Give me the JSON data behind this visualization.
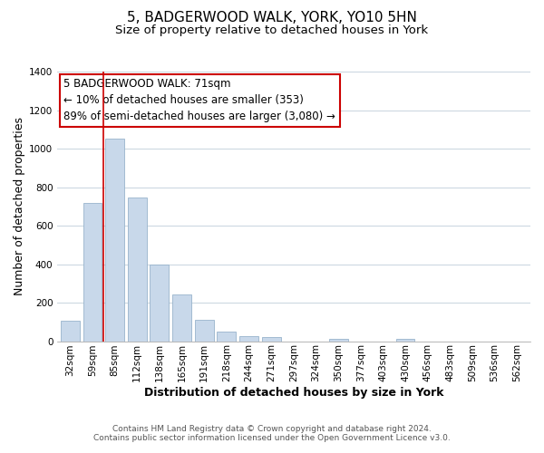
{
  "title": "5, BADGERWOOD WALK, YORK, YO10 5HN",
  "subtitle": "Size of property relative to detached houses in York",
  "xlabel": "Distribution of detached houses by size in York",
  "ylabel": "Number of detached properties",
  "categories": [
    "32sqm",
    "59sqm",
    "85sqm",
    "112sqm",
    "138sqm",
    "165sqm",
    "191sqm",
    "218sqm",
    "244sqm",
    "271sqm",
    "297sqm",
    "324sqm",
    "350sqm",
    "377sqm",
    "403sqm",
    "430sqm",
    "456sqm",
    "483sqm",
    "509sqm",
    "536sqm",
    "562sqm"
  ],
  "values": [
    107,
    720,
    1050,
    748,
    400,
    243,
    110,
    50,
    28,
    22,
    0,
    0,
    10,
    0,
    0,
    10,
    0,
    0,
    0,
    0,
    0
  ],
  "bar_color": "#c8d8ea",
  "bar_edge_color": "#98b4cc",
  "vline_x": 1.5,
  "vline_color": "#cc0000",
  "annotation_line1": "5 BADGERWOOD WALK: 71sqm",
  "annotation_line2": "← 10% of detached houses are smaller (353)",
  "annotation_line3": "89% of semi-detached houses are larger (3,080) →",
  "annotation_box_color": "#ffffff",
  "annotation_box_edge_color": "#cc0000",
  "ylim": [
    0,
    1400
  ],
  "yticks": [
    0,
    200,
    400,
    600,
    800,
    1000,
    1200,
    1400
  ],
  "footer_line1": "Contains HM Land Registry data © Crown copyright and database right 2024.",
  "footer_line2": "Contains public sector information licensed under the Open Government Licence v3.0.",
  "title_fontsize": 11,
  "subtitle_fontsize": 9.5,
  "axis_label_fontsize": 9,
  "tick_fontsize": 7.5,
  "annotation_fontsize": 8.5,
  "footer_fontsize": 6.5,
  "background_color": "#ffffff",
  "grid_color": "#c8d4de"
}
